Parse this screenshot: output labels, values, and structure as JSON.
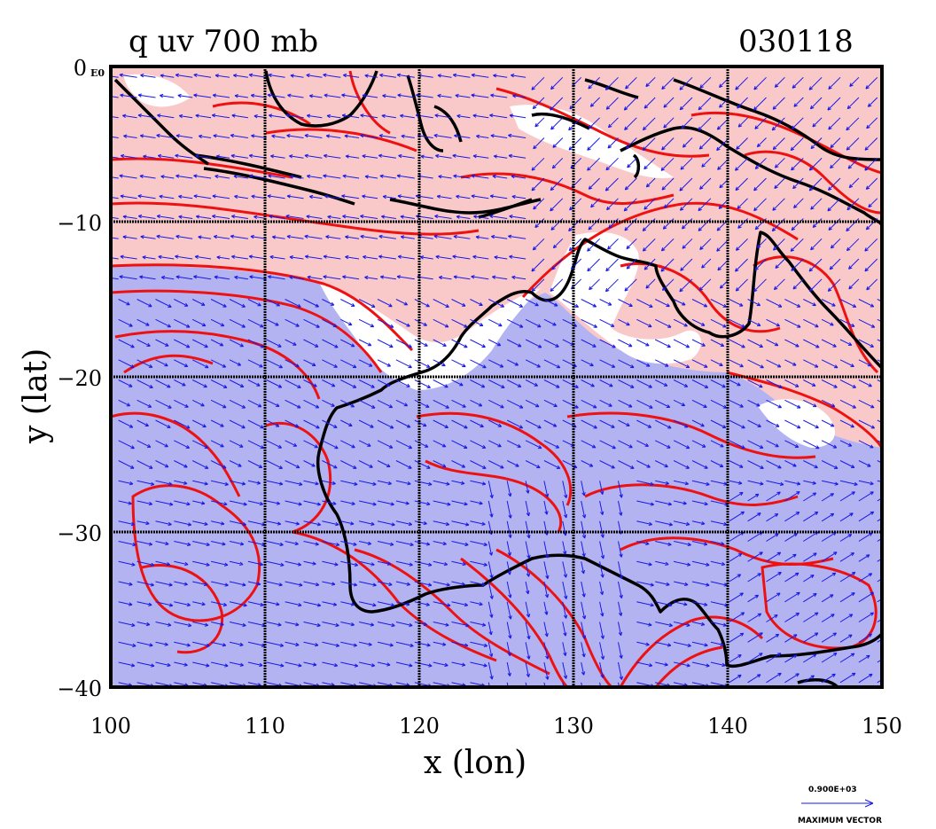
{
  "plot": {
    "title_left": "q uv 700 mb",
    "title_right": "030118",
    "exponent_label": "E0"
  },
  "axes": {
    "xlabel": "x (lon)",
    "ylabel": "y (lat)",
    "xlim": [
      100,
      150
    ],
    "ylim": [
      -40,
      0
    ],
    "x_ticks": [
      {
        "value": 100,
        "label": "100"
      },
      {
        "value": 110,
        "label": "110"
      },
      {
        "value": 120,
        "label": "120"
      },
      {
        "value": 130,
        "label": "130"
      },
      {
        "value": 140,
        "label": "140"
      },
      {
        "value": 150,
        "label": "150"
      }
    ],
    "y_ticks": [
      {
        "value": 0,
        "label": "0"
      },
      {
        "value": -10,
        "label": "−10"
      },
      {
        "value": -20,
        "label": "−20"
      },
      {
        "value": -30,
        "label": "−30"
      },
      {
        "value": -40,
        "label": "−40"
      }
    ],
    "grid": true
  },
  "vector_key": {
    "value_label": "0.900E+03",
    "caption": "MAXIMUM VECTOR"
  },
  "colors": {
    "moist_fill": "#f9c9c9",
    "dry_fill": "#b3b3f2",
    "contour": "#ee1111",
    "coast": "#000000",
    "vector": "#1a1ae6",
    "grid": "#000000"
  },
  "map": {
    "variable": "specific humidity with wind vectors",
    "level": "700 mb",
    "region": "Maritime Continent and Australia"
  }
}
